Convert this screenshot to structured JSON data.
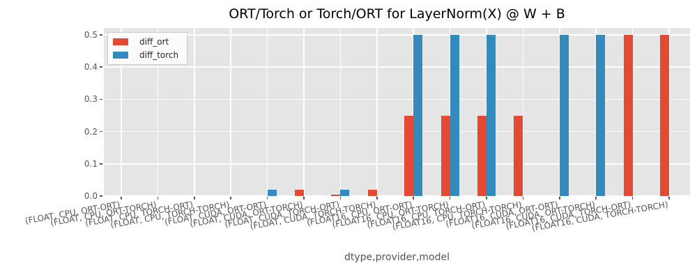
{
  "chart_data": {
    "type": "bar",
    "title": "ORT/Torch or Torch/ORT for LayerNorm(X) @ W + B",
    "xlabel": "dtype,provider,model",
    "ylabel": "",
    "ylim": [
      0,
      0.52
    ],
    "yticks": [
      0.0,
      0.1,
      0.2,
      0.3,
      0.4,
      0.5
    ],
    "grid": true,
    "legend_position": "upper left",
    "plot_background": "#e5e5e5",
    "grid_color": "#ffffff",
    "tick_color": "#555555",
    "categories": [
      "(FLOAT, CPU, ORT-ORT)",
      "(FLOAT, CPU, ORT-TORCH)",
      "(FLOAT, CPU, TORCH-ORT)",
      "(FLOAT, CPU, TORCH-TORCH)",
      "(FLOAT, CUDA, ORT-ORT)",
      "(FLOAT, CUDA, ORT-TORCH)",
      "(FLOAT, CUDA, TORCH-ORT)",
      "(FLOAT, CUDA, TORCH-TORCH)",
      "(FLOAT16, CPU, ORT-ORT)",
      "(FLOAT16, CPU, ORT-TORCH)",
      "(FLOAT16, CPU, TORCH-ORT)",
      "(FLOAT16, CPU, TORCH-TORCH)",
      "(FLOAT16, CUDA, ORT-ORT)",
      "(FLOAT16, CUDA, ORT-TORCH)",
      "(FLOAT16, CUDA, TORCH-ORT)",
      "(FLOAT16, CUDA, TORCH-TORCH)"
    ],
    "series": [
      {
        "name": "diff_ort",
        "color": "#e24a33",
        "values": [
          0,
          0,
          0,
          0,
          0,
          0.02,
          0.005,
          0.02,
          0.25,
          0.25,
          0.25,
          0.25,
          0,
          0,
          0.5,
          0.5
        ]
      },
      {
        "name": "diff_torch",
        "color": "#348abd",
        "values": [
          0,
          0,
          0,
          0,
          0.02,
          0,
          0.02,
          0,
          0.5,
          0.5,
          0.5,
          0,
          0.5,
          0.5,
          0,
          0
        ]
      }
    ]
  }
}
